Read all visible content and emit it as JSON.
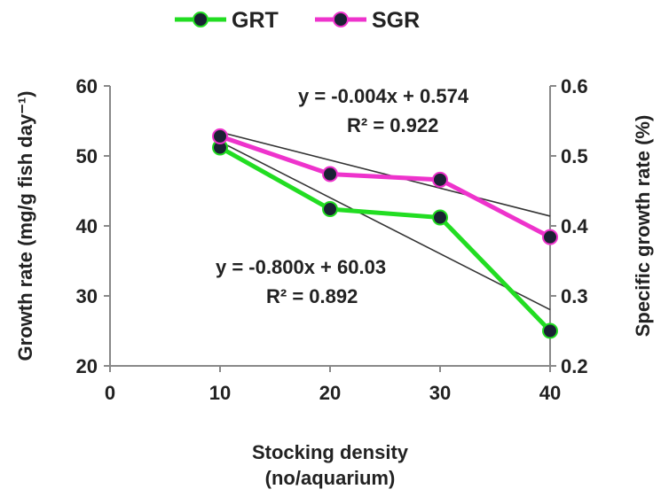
{
  "chart_data": {
    "type": "line",
    "x": [
      10,
      20,
      30,
      40
    ],
    "x_ticks": [
      0,
      10,
      20,
      30,
      40
    ],
    "xlim": [
      0,
      40
    ],
    "xlabel": [
      "Stocking density",
      "(no/aquarium)"
    ],
    "ylabel_left": "Growth rate (mg/g fish day⁻¹)",
    "ylabel_right": "Specific growth rate (%)",
    "ylim_left": [
      20,
      60
    ],
    "yticks_left": [
      "20",
      "30",
      "40",
      "50",
      "60"
    ],
    "ylim_right": [
      0.2,
      0.6
    ],
    "yticks_right": [
      "0.2",
      "0.3",
      "0.4",
      "0.5",
      "0.6"
    ],
    "grid": false,
    "legend_position": "top",
    "series": [
      {
        "name": "GRT",
        "axis": "left",
        "color": "#22dd22",
        "values": [
          51.2,
          42.4,
          41.2,
          25.0
        ],
        "trend": {
          "slope": -0.8,
          "intercept": 60.03,
          "equation": "y = -0.800x  + 60.03",
          "r2": "R² = 0.892"
        }
      },
      {
        "name": "SGR",
        "axis": "right",
        "color": "#ee33cc",
        "values": [
          0.528,
          0.474,
          0.466,
          0.384
        ],
        "trend": {
          "slope": -0.004,
          "intercept": 0.574,
          "equation": "y = -0.004x  + 0.574",
          "r2": "R² = 0.922"
        }
      }
    ],
    "trendline_color": "#333333",
    "marker_color": "#1a2233"
  }
}
